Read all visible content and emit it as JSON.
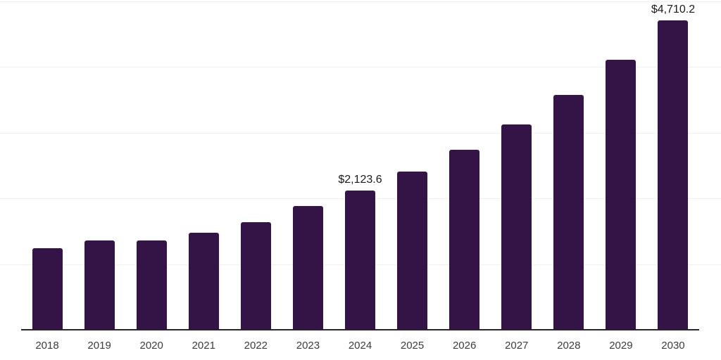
{
  "chart_data": {
    "type": "bar",
    "title": "",
    "xlabel": "",
    "ylabel": "",
    "categories": [
      "2018",
      "2019",
      "2020",
      "2021",
      "2022",
      "2023",
      "2024",
      "2025",
      "2026",
      "2027",
      "2028",
      "2029",
      "2030"
    ],
    "values": [
      1240,
      1365,
      1355,
      1480,
      1640,
      1880,
      2123.6,
      2410,
      2740,
      3130,
      3580,
      4110,
      4710.2
    ],
    "value_labels": [
      "",
      "",
      "",
      "",
      "",
      "",
      "$2,123.6",
      "",
      "",
      "",
      "",
      "",
      "$4,710.2"
    ],
    "ylim": [
      0,
      5000
    ],
    "grid_interval": 1000,
    "grid": "horizontal",
    "legend": "none",
    "y_axis_tick_labels": "none",
    "colors": {
      "bar": "#341447",
      "axis_line": "#262626",
      "gridline": "#f0f0f0",
      "x_tick_label": "#3c3c3c",
      "value_label": "#1a1a1a",
      "background": "#ffffff"
    }
  }
}
